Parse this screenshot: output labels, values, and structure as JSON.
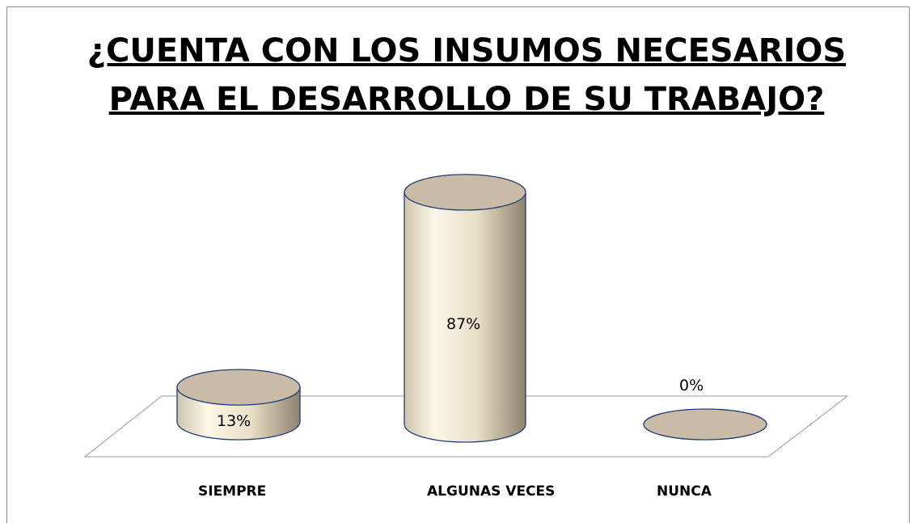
{
  "chart_data": {
    "type": "bar",
    "title": [
      "¿CUENTA CON LOS INSUMOS NECESARIOS",
      "PARA EL DESARROLLO DE SU TRABAJO?"
    ],
    "categories": [
      "SIEMPRE",
      "ALGUNAS VECES",
      "NUNCA"
    ],
    "values": [
      13,
      87,
      0
    ],
    "value_labels": [
      "13%",
      "87%",
      "0%"
    ],
    "color": "#c9bba5"
  }
}
